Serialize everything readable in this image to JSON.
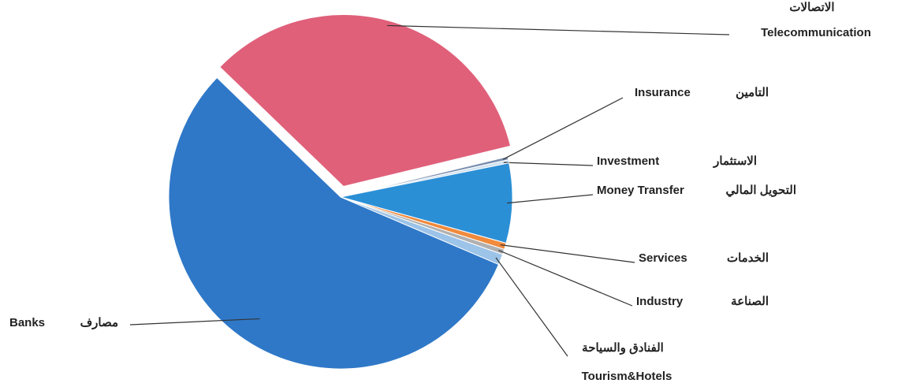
{
  "chart_data": {
    "type": "pie",
    "categories": [
      "Telecommunication",
      "Insurance",
      "Investment",
      "Money Transfer",
      "Services",
      "Industry",
      "Tourism&Hotels",
      "Banks"
    ],
    "categories_ar": [
      "الاتصالات",
      "التامين",
      "الاستثمار",
      "التحويل المالي",
      "الخدمات",
      "الصناعة",
      "الفنادق والسياحة",
      "مصارف"
    ],
    "values": [
      34,
      0.3,
      0.3,
      7.5,
      0.6,
      0.5,
      1,
      55.8
    ],
    "colors": [
      "#e0607a",
      "#7a8fb0",
      "#cfe0ef",
      "#2b8fd6",
      "#f08a3c",
      "#b0b0b0",
      "#9cc3e8",
      "#2f78c8"
    ],
    "exploded": [
      "Telecommunication"
    ]
  }
}
